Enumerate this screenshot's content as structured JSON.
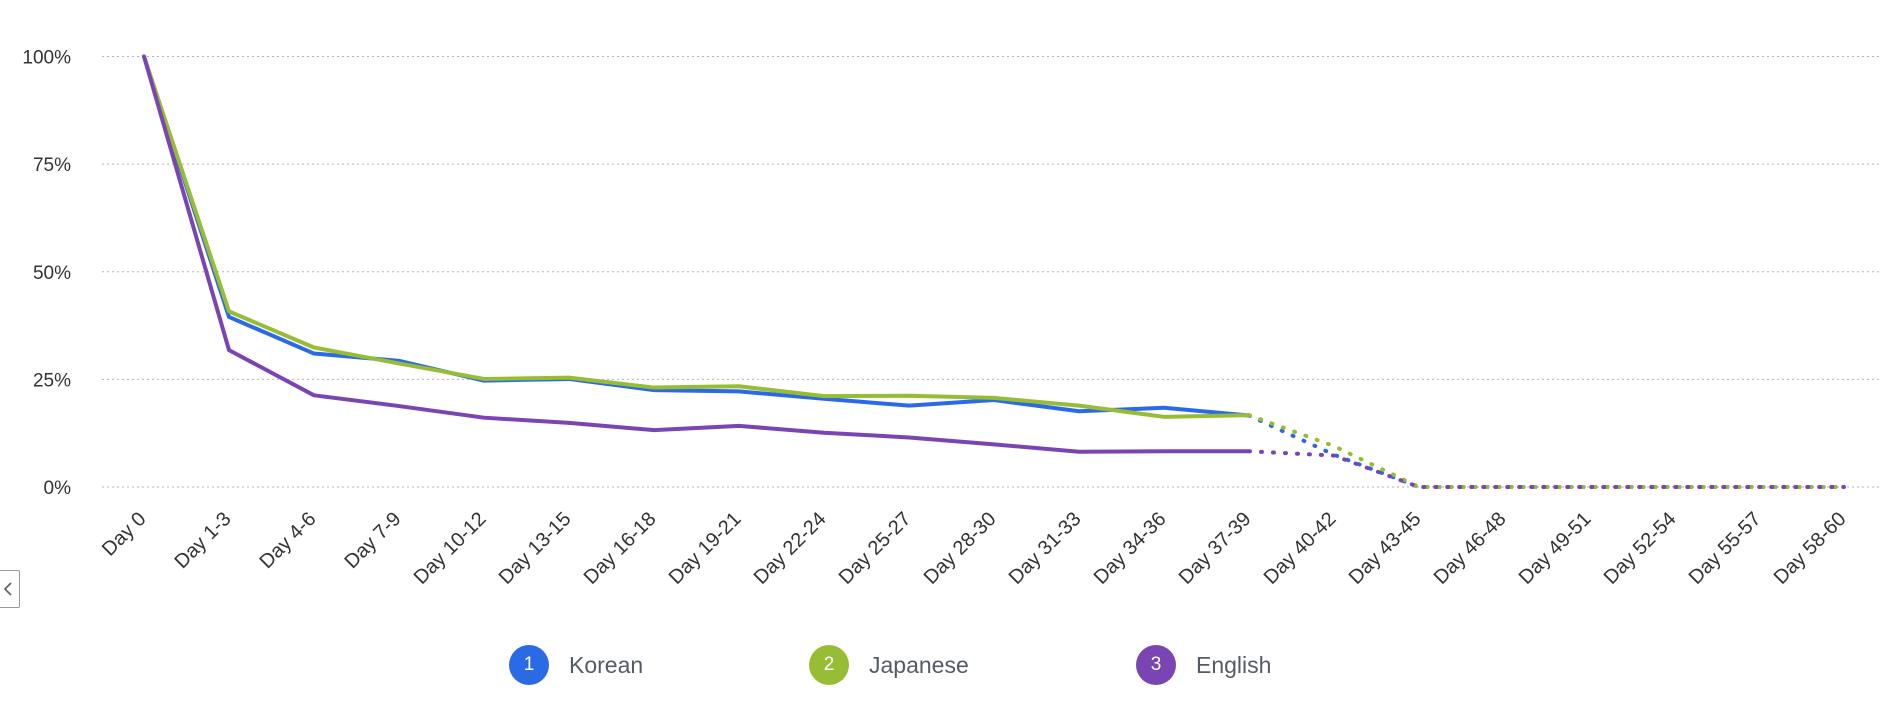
{
  "chart_data": {
    "type": "line",
    "categories": [
      "Day 0",
      "Day 1-3",
      "Day 4-6",
      "Day 7-9",
      "Day 10-12",
      "Day 13-15",
      "Day 16-18",
      "Day 19-21",
      "Day 22-24",
      "Day 25-27",
      "Day 28-30",
      "Day 31-33",
      "Day 34-36",
      "Day 37-39",
      "Day 40-42",
      "Day 43-45",
      "Day 46-48",
      "Day 49-51",
      "Day 52-54",
      "Day 55-57",
      "Day 58-60"
    ],
    "y_ticks": [
      "0%",
      "25%",
      "50%",
      "75%",
      "100%"
    ],
    "ylim": [
      0,
      100
    ],
    "grid": true,
    "legend_placement": "bottom",
    "solid_through_index": 13,
    "projected_from_index": 13,
    "series": [
      {
        "name": "Korean",
        "badge": "1",
        "color": "#2b6ae6",
        "values": [
          100,
          39.5,
          31,
          29.3,
          24.7,
          25.1,
          22.5,
          22.2,
          20.5,
          18.9,
          20.2,
          17.6,
          18.4,
          16.6,
          7.5,
          0,
          0,
          0,
          0,
          0,
          0
        ]
      },
      {
        "name": "Japanese",
        "badge": "2",
        "color": "#97bd35",
        "values": [
          100,
          40.8,
          32.4,
          28.7,
          25.1,
          25.4,
          23.1,
          23.4,
          21.1,
          21.2,
          20.7,
          18.9,
          16.3,
          16.7,
          9.5,
          0,
          0,
          0,
          0,
          0,
          0
        ]
      },
      {
        "name": "English",
        "badge": "3",
        "color": "#7b44b3",
        "values": [
          100,
          31.8,
          21.3,
          18.8,
          16.1,
          14.9,
          13.2,
          14.2,
          12.6,
          11.5,
          9.9,
          8.2,
          8.3,
          8.3,
          7.3,
          0,
          0,
          0,
          0,
          0,
          0
        ]
      }
    ]
  }
}
